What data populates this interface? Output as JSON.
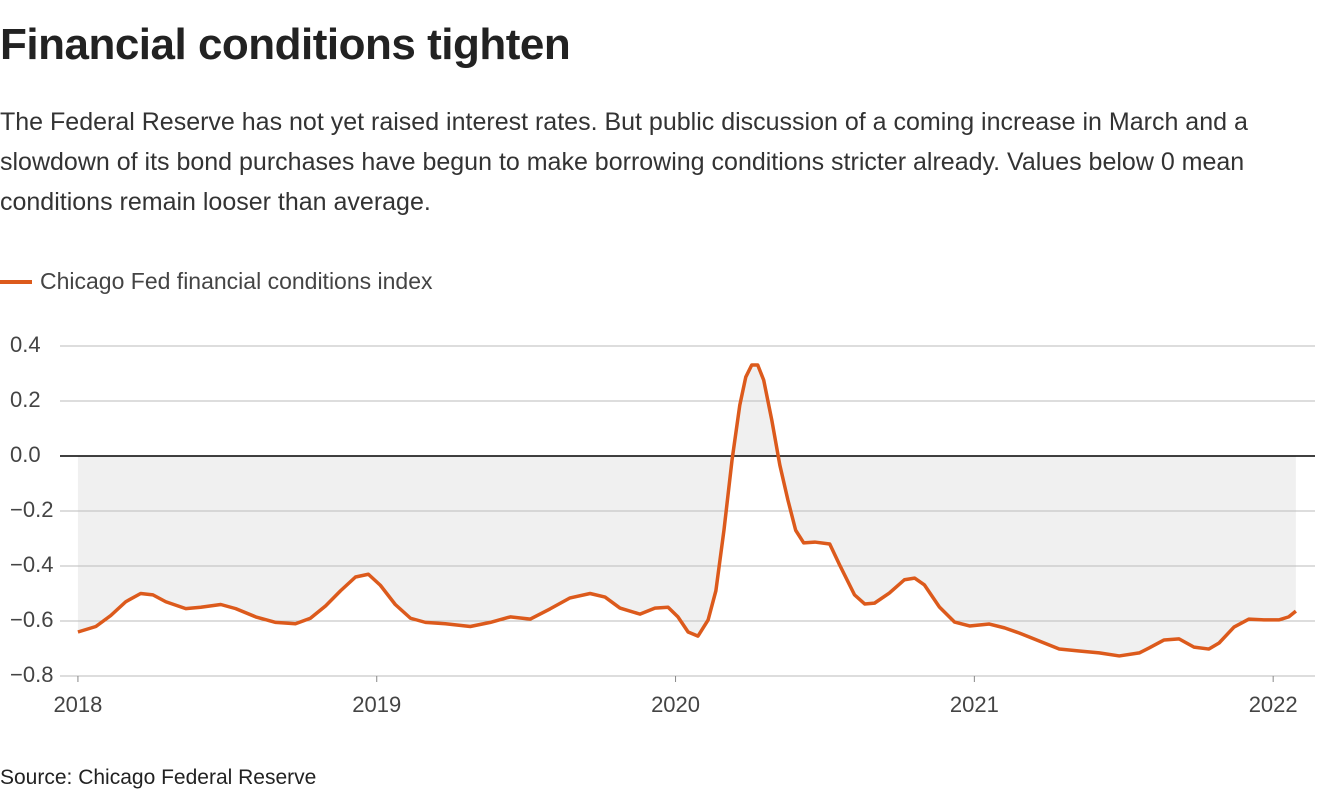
{
  "chart_data": {
    "type": "line",
    "title": "Financial conditions tighten",
    "subtitle": "The Federal Reserve has not yet raised interest rates. But public discussion of a coming increase in March and a slowdown of its bond purchases have begun to make borrowing conditions stricter already. Values below 0 mean conditions remain looser than average.",
    "source": "Source: Chicago Federal Reserve",
    "x": [
      2018.0,
      2018.06,
      2018.11,
      2018.16,
      2018.21,
      2018.251,
      2018.294,
      2018.361,
      2018.411,
      2018.478,
      2018.528,
      2018.595,
      2018.662,
      2018.728,
      2018.778,
      2018.829,
      2018.879,
      2018.929,
      2018.972,
      2019.012,
      2019.062,
      2019.113,
      2019.163,
      2019.23,
      2019.313,
      2019.38,
      2019.447,
      2019.514,
      2019.58,
      2019.647,
      2019.714,
      2019.764,
      2019.814,
      2019.881,
      2019.931,
      2019.975,
      2020.008,
      2020.042,
      2020.075,
      2020.109,
      2020.135,
      2020.162,
      2020.189,
      2020.215,
      2020.235,
      2020.255,
      2020.275,
      2020.295,
      2020.322,
      2020.349,
      2020.376,
      2020.402,
      2020.429,
      2020.466,
      2020.516,
      2020.549,
      2020.599,
      2020.633,
      2020.666,
      2020.716,
      2020.766,
      2020.8,
      2020.833,
      2020.883,
      2020.934,
      2020.984,
      2021.05,
      2021.101,
      2021.151,
      2021.218,
      2021.284,
      2021.351,
      2021.418,
      2021.485,
      2021.552,
      2021.585,
      2021.635,
      2021.685,
      2021.735,
      2021.785,
      2021.819,
      2021.869,
      2021.919,
      2021.969,
      2022.019,
      2022.052,
      2022.076
    ],
    "series": [
      {
        "name": "Chicago Fed financial conditions index",
        "color": "#dc5a1c",
        "values": [
          -0.64,
          -0.62,
          -0.58,
          -0.53,
          -0.5,
          -0.505,
          -0.53,
          -0.555,
          -0.55,
          -0.54,
          -0.555,
          -0.585,
          -0.605,
          -0.61,
          -0.59,
          -0.545,
          -0.49,
          -0.44,
          -0.43,
          -0.47,
          -0.54,
          -0.59,
          -0.605,
          -0.61,
          -0.62,
          -0.605,
          -0.585,
          -0.593,
          -0.556,
          -0.516,
          -0.5,
          -0.513,
          -0.553,
          -0.575,
          -0.553,
          -0.55,
          -0.585,
          -0.64,
          -0.655,
          -0.596,
          -0.49,
          -0.27,
          -0.015,
          0.185,
          0.287,
          0.331,
          0.331,
          0.276,
          0.131,
          -0.033,
          -0.16,
          -0.27,
          -0.316,
          -0.313,
          -0.32,
          -0.396,
          -0.505,
          -0.538,
          -0.535,
          -0.498,
          -0.45,
          -0.444,
          -0.469,
          -0.549,
          -0.604,
          -0.618,
          -0.611,
          -0.625,
          -0.644,
          -0.673,
          -0.702,
          -0.709,
          -0.716,
          -0.727,
          -0.716,
          -0.698,
          -0.669,
          -0.665,
          -0.695,
          -0.702,
          -0.68,
          -0.622,
          -0.593,
          -0.596,
          -0.596,
          -0.585,
          -0.564
        ]
      }
    ],
    "xlim": [
      2017.94,
      2022.14
    ],
    "xticks": [
      2018,
      2019,
      2020,
      2021,
      2022
    ],
    "ylim": [
      -0.8,
      0.4
    ],
    "yticks": [
      0.4,
      0.2,
      {
        "value": 0,
        "label": "0.0"
      },
      {
        "value": -0.2,
        "label": "−0.2"
      },
      {
        "value": -0.4,
        "label": "−0.4"
      },
      {
        "value": -0.6,
        "label": "−0.6"
      },
      {
        "value": -0.8,
        "label": "−0.8"
      }
    ],
    "grid": true,
    "area_fill": "#f0f0f0"
  }
}
